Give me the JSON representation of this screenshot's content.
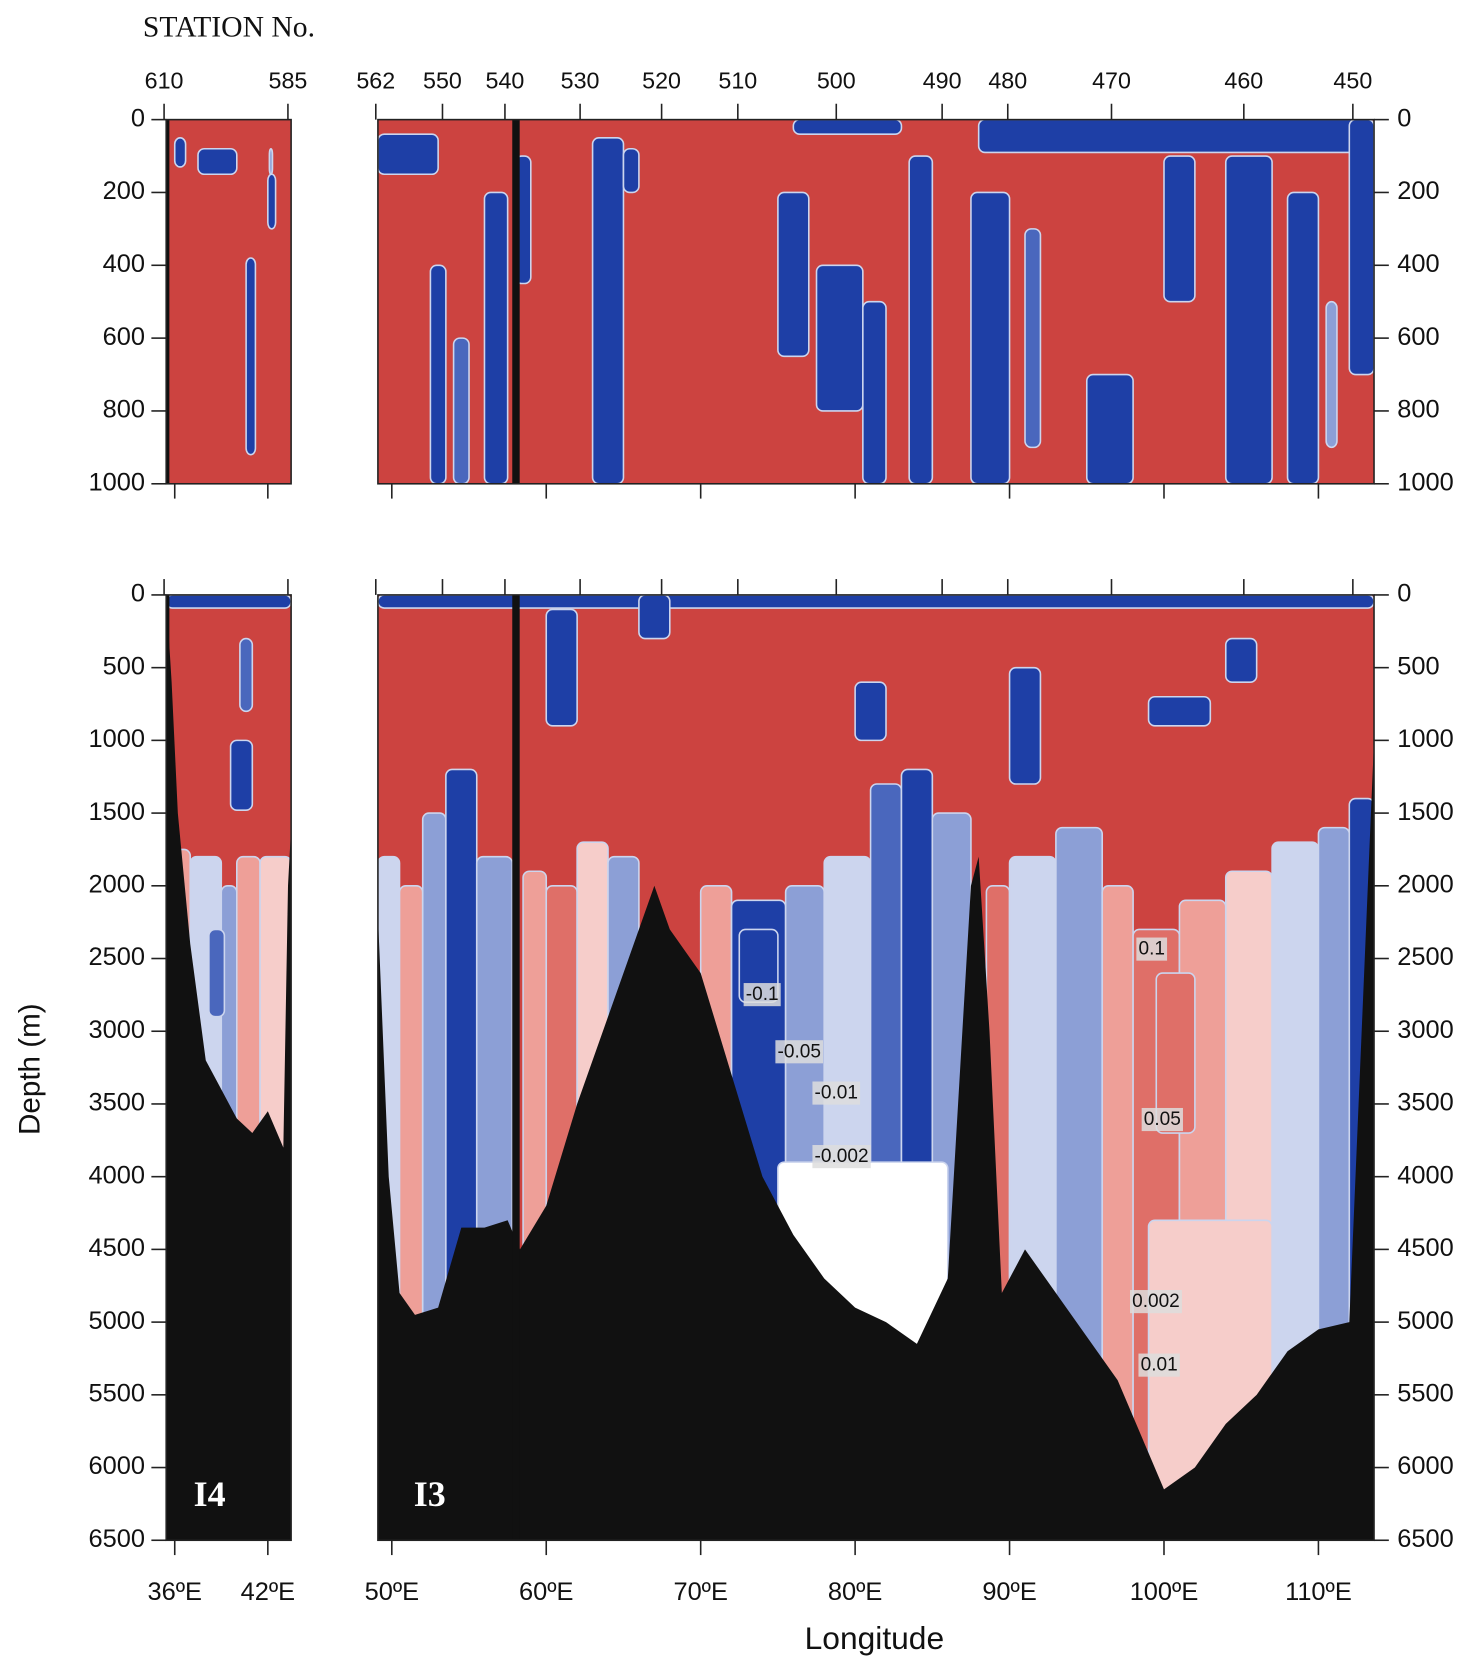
{
  "chart_data": {
    "type": "contour",
    "station_label": "STATION No.",
    "y_label": "Depth (m)",
    "x_label": "Longitude",
    "levels": [
      -0.1,
      -0.05,
      -0.01,
      -0.002,
      0.002,
      0.01,
      0.05,
      0.1
    ],
    "colors": [
      "#1e3fa6",
      "#4a67bd",
      "#8c9fd6",
      "#ccd5ee",
      "#ffffff",
      "#f6cdca",
      "#ee9f98",
      "#df6f68",
      "#cc4340"
    ],
    "bottom_color": "#111111",
    "sections": [
      {
        "name": "I4",
        "stations": [
          610,
          585
        ],
        "xlim": [
          35.45,
          43.5
        ],
        "xticks": [
          {
            "value": 36,
            "label": "36ºE"
          },
          {
            "value": 42,
            "label": "42ºE"
          }
        ]
      },
      {
        "name": "I3",
        "stations": [
          562,
          550,
          540,
          530,
          520,
          510,
          500,
          490,
          480,
          470,
          460,
          450
        ],
        "xlim": [
          49.1,
          113.6
        ],
        "xticks": [
          {
            "value": 50,
            "label": "50ºE"
          },
          {
            "value": 60,
            "label": "60ºE"
          },
          {
            "value": 70,
            "label": "70ºE"
          },
          {
            "value": 80,
            "label": "80ºE"
          },
          {
            "value": 90,
            "label": "90ºE"
          },
          {
            "value": 100,
            "label": "100ºE"
          },
          {
            "value": 110,
            "label": "110ºE"
          }
        ]
      }
    ],
    "depth_panels": [
      {
        "ylim": [
          0,
          1000
        ],
        "yticks": [
          0,
          200,
          400,
          600,
          800,
          1000
        ]
      },
      {
        "ylim": [
          0,
          6500
        ],
        "yticks": [
          0,
          500,
          1000,
          1500,
          2000,
          2500,
          3000,
          3500,
          4000,
          4500,
          5000,
          5500,
          6000,
          6500
        ]
      }
    ]
  }
}
